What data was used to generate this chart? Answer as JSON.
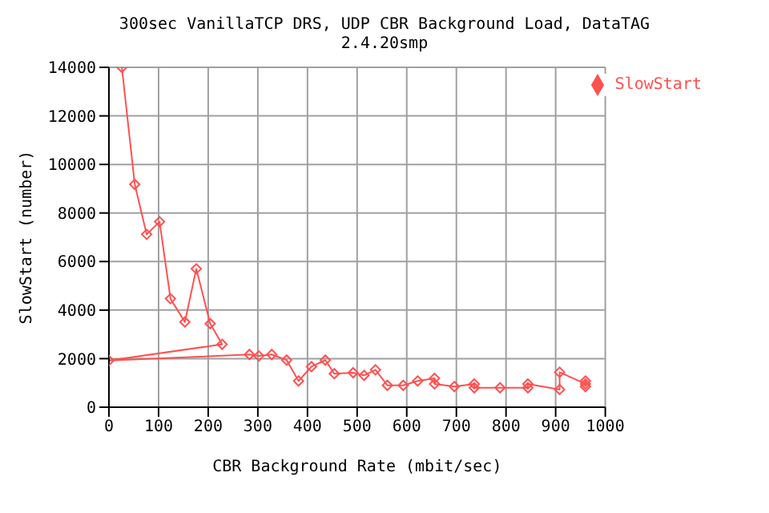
{
  "chart_data": {
    "type": "line",
    "title": "300sec VanillaTCP DRS, UDP CBR Background Load, DataTAG",
    "subtitle": "2.4.20smp",
    "xlabel": "CBR Background Rate (mbit/sec)",
    "ylabel": "SlowStart (number)",
    "xlim": [
      0,
      1000
    ],
    "xticks": [
      0,
      100,
      200,
      300,
      400,
      500,
      600,
      700,
      800,
      900,
      1000
    ],
    "ylim": [
      0,
      14000
    ],
    "yticks": [
      0,
      2000,
      4000,
      6000,
      8000,
      10000,
      12000,
      14000
    ],
    "grid": true,
    "legend": "top right",
    "marker": "diamond",
    "line_style": "solid",
    "series": [
      {
        "name": "SlowStart",
        "color": "#ff5050",
        "x": [
          26,
          52,
          76,
          102,
          124,
          153,
          176,
          204,
          228,
          0,
          283,
          302,
          328,
          358,
          382,
          408,
          436,
          454,
          492,
          514,
          537,
          561,
          593,
          622,
          656,
          656,
          696,
          736,
          736,
          788,
          844,
          844,
          908,
          908,
          960,
          960,
          960
        ],
        "values": [
          14000,
          9180,
          7120,
          7640,
          4470,
          3510,
          5700,
          3440,
          2590,
          1920,
          2170,
          2110,
          2170,
          1940,
          1080,
          1670,
          1940,
          1380,
          1420,
          1310,
          1540,
          900,
          900,
          1080,
          1190,
          960,
          850,
          960,
          800,
          800,
          800,
          960,
          730,
          1440,
          960,
          1080,
          850
        ]
      }
    ]
  }
}
